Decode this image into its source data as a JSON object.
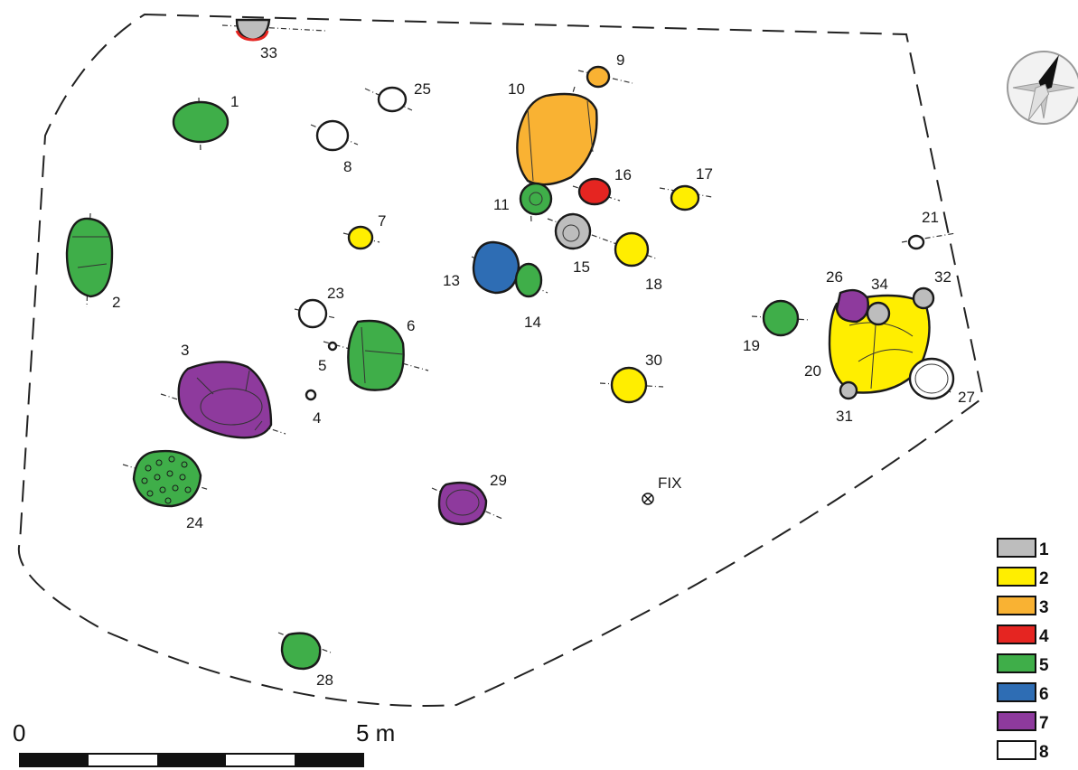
{
  "features": [
    {
      "id": "1",
      "cls": 5
    },
    {
      "id": "2",
      "cls": 5
    },
    {
      "id": "3",
      "cls": 7
    },
    {
      "id": "4",
      "cls": 8
    },
    {
      "id": "5",
      "cls": 8
    },
    {
      "id": "6",
      "cls": 5
    },
    {
      "id": "7",
      "cls": 2
    },
    {
      "id": "8",
      "cls": 8
    },
    {
      "id": "9",
      "cls": 3
    },
    {
      "id": "10",
      "cls": 3
    },
    {
      "id": "11",
      "cls": 5
    },
    {
      "id": "13",
      "cls": 6
    },
    {
      "id": "14",
      "cls": 5
    },
    {
      "id": "15",
      "cls": 1
    },
    {
      "id": "16",
      "cls": 4
    },
    {
      "id": "17",
      "cls": 2
    },
    {
      "id": "18",
      "cls": 2
    },
    {
      "id": "19",
      "cls": 5
    },
    {
      "id": "20",
      "cls": 2
    },
    {
      "id": "21",
      "cls": 8
    },
    {
      "id": "23",
      "cls": 8
    },
    {
      "id": "24",
      "cls": 5
    },
    {
      "id": "25",
      "cls": 8
    },
    {
      "id": "26",
      "cls": 7
    },
    {
      "id": "27",
      "cls": 8
    },
    {
      "id": "28",
      "cls": 5
    },
    {
      "id": "29",
      "cls": 7
    },
    {
      "id": "30",
      "cls": 2
    },
    {
      "id": "31",
      "cls": 1
    },
    {
      "id": "32",
      "cls": 1
    },
    {
      "id": "33",
      "cls": 1
    },
    {
      "id": "34",
      "cls": 1
    }
  ],
  "fix_label": "FIX",
  "scale": {
    "start_label": "0",
    "end_label": "5 m"
  },
  "legend": [
    {
      "label": "1",
      "color": "#bdbdbd"
    },
    {
      "label": "2",
      "color": "#ffee00"
    },
    {
      "label": "3",
      "color": "#f9b233"
    },
    {
      "label": "4",
      "color": "#e52521"
    },
    {
      "label": "5",
      "color": "#3fae49"
    },
    {
      "label": "6",
      "color": "#2e6db4"
    },
    {
      "label": "7",
      "color": "#8e3a9d"
    },
    {
      "label": "8",
      "color": "#ffffff"
    }
  ],
  "compass_icon": "north-arrow-icon"
}
